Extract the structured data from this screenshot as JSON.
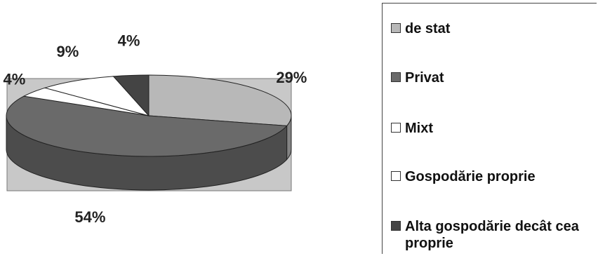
{
  "chart_data": {
    "type": "pie",
    "style": "3d",
    "title": "",
    "slices": [
      {
        "name": "de stat",
        "value": 29,
        "label": "29%",
        "color": "#b8b8b8"
      },
      {
        "name": "Privat",
        "value": 54,
        "label": "54%",
        "color": "#6a6a6a"
      },
      {
        "name": "Mixt",
        "value": 4,
        "label": "4%",
        "color": "#ffffff"
      },
      {
        "name": "Gospodărie proprie",
        "value": 9,
        "label": "9%",
        "color": "#ffffff"
      },
      {
        "name": "Alta gospodărie decât cea proprie",
        "value": 4,
        "label": "4%",
        "color": "#444444"
      }
    ],
    "legend_placement": "right",
    "background_color": "#c8c8c8"
  },
  "legend": {
    "items": [
      {
        "label": "de stat",
        "color": "#b8b8b8"
      },
      {
        "label": "Privat",
        "color": "#6a6a6a"
      },
      {
        "label": "Mixt",
        "color": "#ffffff"
      },
      {
        "label": "Gospodărie proprie",
        "color": "#ffffff"
      },
      {
        "label": "Alta gospodărie decât cea proprie",
        "color": "#444444"
      }
    ]
  }
}
